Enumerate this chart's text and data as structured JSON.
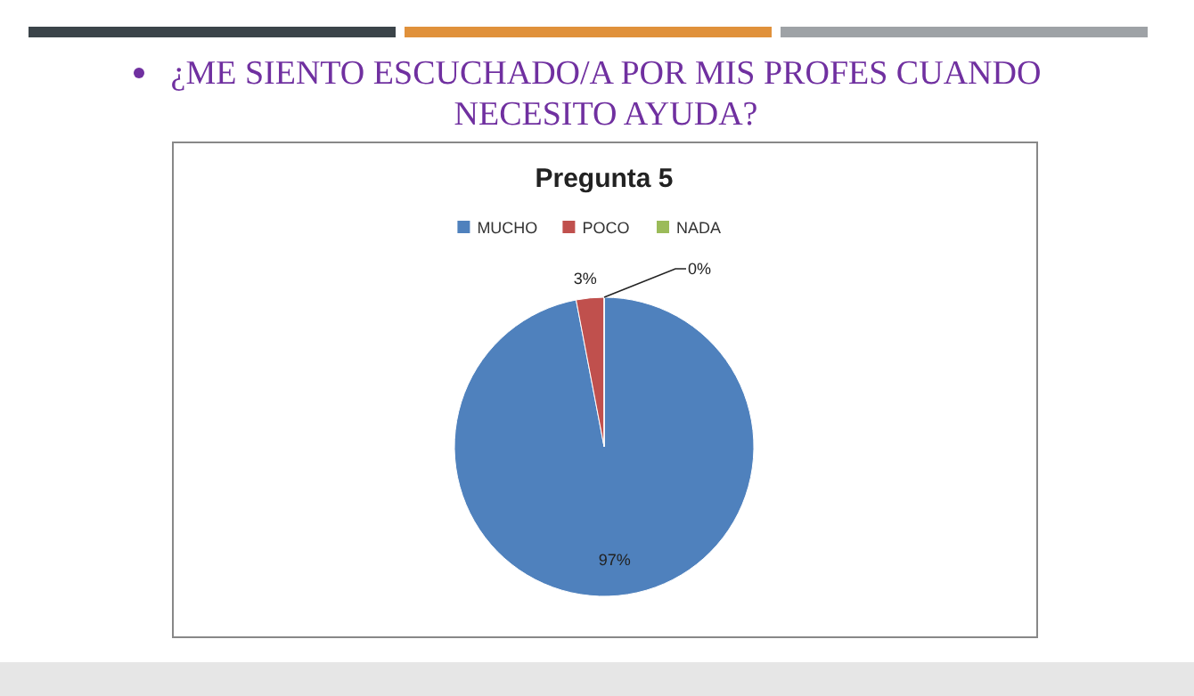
{
  "chart_data": {
    "type": "pie",
    "title": "¿ME SIENTO ESCUCHADO/A POR MIS PROFES CUANDO NECESITO AYUDA?",
    "subtitle": "Pregunta 5",
    "categories": [
      "MUCHO",
      "POCO",
      "NADA"
    ],
    "values": [
      97,
      3,
      0
    ],
    "colors": [
      "#4f81bd",
      "#c0504d",
      "#9bbb59"
    ],
    "value_labels": [
      "97%",
      "3%",
      "0%"
    ],
    "legend": "top"
  }
}
